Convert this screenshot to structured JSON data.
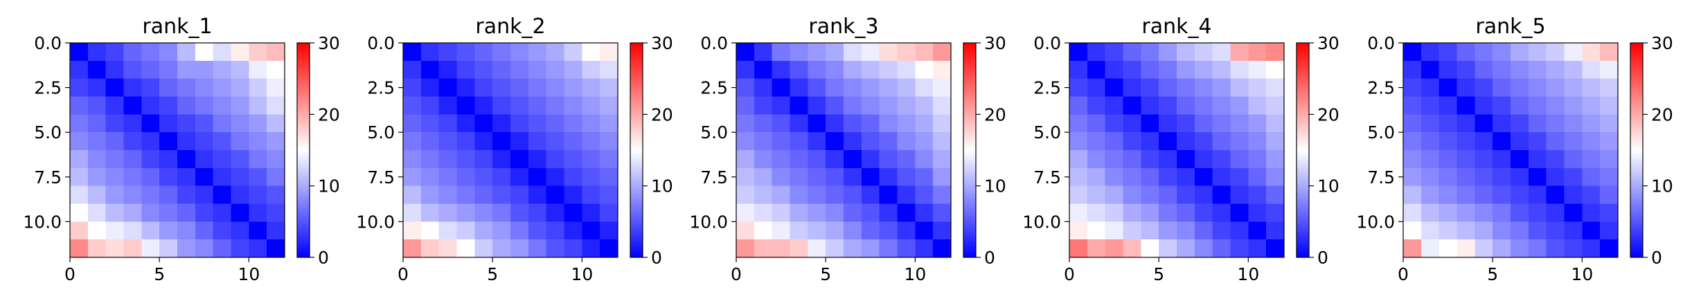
{
  "chart_data": [
    {
      "type": "heatmap",
      "title": "rank_1",
      "n": 12,
      "xticks": [
        0,
        5,
        10
      ],
      "xtick_labels": [
        "0",
        "5",
        "10"
      ],
      "yticks": [
        0,
        2.5,
        5,
        7.5,
        10
      ],
      "ytick_labels": [
        "0.0",
        "2.5",
        "5.0",
        "7.5",
        "10.0"
      ],
      "colorbar": {
        "vmin": 0,
        "vmax": 30,
        "ticks": [
          0,
          10,
          20,
          30
        ],
        "tick_labels": [
          "0",
          "10",
          "20",
          "30"
        ],
        "colors": [
          "#0000ff",
          "#ffffff",
          "#ff0000"
        ]
      },
      "values": [
        [
          0,
          3,
          4,
          6,
          7,
          8,
          11,
          15,
          13,
          16,
          18,
          19
        ],
        [
          3,
          0,
          3,
          5,
          6,
          7,
          9,
          9,
          10,
          11,
          14,
          15
        ],
        [
          4,
          3,
          0,
          3,
          4,
          6,
          7,
          8,
          9,
          10,
          12,
          14
        ],
        [
          6,
          5,
          3,
          0,
          3,
          4,
          6,
          7,
          8,
          9,
          11,
          13
        ],
        [
          7,
          6,
          4,
          3,
          0,
          3,
          4,
          5,
          7,
          8,
          9,
          11
        ],
        [
          8,
          7,
          6,
          4,
          3,
          0,
          3,
          4,
          5,
          7,
          8,
          9
        ],
        [
          10,
          8,
          7,
          6,
          4,
          3,
          0,
          3,
          4,
          5,
          7,
          8
        ],
        [
          11,
          9,
          8,
          7,
          6,
          4,
          3,
          0,
          3,
          4,
          5,
          7
        ],
        [
          13,
          11,
          9,
          8,
          7,
          6,
          4,
          3,
          0,
          3,
          4,
          5
        ],
        [
          15,
          13,
          11,
          10,
          8,
          7,
          6,
          4,
          3,
          0,
          3,
          4
        ],
        [
          18,
          15,
          14,
          13,
          11,
          9,
          8,
          6,
          4,
          3,
          0,
          3
        ],
        [
          22,
          18,
          17,
          18,
          14,
          12,
          9,
          8,
          6,
          4,
          3,
          0
        ]
      ]
    },
    {
      "type": "heatmap",
      "title": "rank_2",
      "n": 12,
      "xticks": [
        0,
        5,
        10
      ],
      "xtick_labels": [
        "0",
        "5",
        "10"
      ],
      "yticks": [
        0,
        2.5,
        5,
        7.5,
        10
      ],
      "ytick_labels": [
        "0.0",
        "2.5",
        "5.0",
        "7.5",
        "10.0"
      ],
      "colorbar": {
        "vmin": 0,
        "vmax": 30,
        "ticks": [
          0,
          10,
          20,
          30
        ],
        "tick_labels": [
          "0",
          "10",
          "20",
          "30"
        ],
        "colors": [
          "#0000ff",
          "#ffffff",
          "#ff0000"
        ]
      },
      "values": [
        [
          0,
          3,
          4,
          5,
          6,
          7,
          8,
          9,
          10,
          12,
          15,
          16
        ],
        [
          3,
          0,
          2,
          4,
          5,
          6,
          7,
          8,
          9,
          10,
          12,
          13
        ],
        [
          4,
          2,
          0,
          2,
          4,
          5,
          6,
          7,
          8,
          9,
          10,
          11
        ],
        [
          5,
          4,
          2,
          0,
          2,
          4,
          5,
          6,
          7,
          8,
          9,
          10
        ],
        [
          6,
          5,
          4,
          2,
          0,
          2,
          4,
          5,
          6,
          7,
          8,
          9
        ],
        [
          7,
          6,
          5,
          4,
          2,
          0,
          2,
          4,
          5,
          6,
          7,
          8
        ],
        [
          8,
          7,
          6,
          5,
          4,
          2,
          0,
          2,
          4,
          5,
          6,
          7
        ],
        [
          9,
          8,
          7,
          6,
          5,
          4,
          2,
          0,
          2,
          4,
          5,
          6
        ],
        [
          11,
          9,
          8,
          7,
          6,
          5,
          4,
          2,
          0,
          2,
          4,
          5
        ],
        [
          13,
          11,
          10,
          9,
          8,
          7,
          5,
          4,
          2,
          0,
          2,
          4
        ],
        [
          16,
          15,
          13,
          12,
          10,
          9,
          7,
          5,
          4,
          2,
          0,
          2
        ],
        [
          21,
          18,
          17,
          15,
          12,
          10,
          9,
          7,
          5,
          4,
          2,
          0
        ]
      ]
    },
    {
      "type": "heatmap",
      "title": "rank_3",
      "n": 12,
      "xticks": [
        0,
        5,
        10
      ],
      "xtick_labels": [
        "0",
        "5",
        "10"
      ],
      "yticks": [
        0,
        2.5,
        5,
        7.5,
        10
      ],
      "ytick_labels": [
        "0.0",
        "2.5",
        "5.0",
        "7.5",
        "10.0"
      ],
      "colorbar": {
        "vmin": 0,
        "vmax": 30,
        "ticks": [
          0,
          10,
          20,
          30
        ],
        "tick_labels": [
          "0",
          "10",
          "20",
          "30"
        ],
        "colors": [
          "#0000ff",
          "#ffffff",
          "#ff0000"
        ]
      },
      "values": [
        [
          0,
          3,
          7,
          8,
          9,
          10,
          13,
          14,
          17,
          18,
          19,
          21
        ],
        [
          3,
          0,
          3,
          5,
          7,
          8,
          10,
          11,
          12,
          13,
          15,
          16
        ],
        [
          5,
          3,
          0,
          3,
          5,
          7,
          8,
          9,
          10,
          11,
          13,
          14
        ],
        [
          6,
          4,
          3,
          0,
          3,
          5,
          7,
          8,
          9,
          10,
          11,
          13
        ],
        [
          7,
          6,
          5,
          3,
          0,
          3,
          5,
          6,
          8,
          9,
          10,
          12
        ],
        [
          8,
          7,
          6,
          5,
          3,
          0,
          3,
          5,
          6,
          8,
          9,
          11
        ],
        [
          10,
          8,
          7,
          6,
          5,
          3,
          0,
          3,
          5,
          6,
          8,
          10
        ],
        [
          11,
          10,
          8,
          7,
          6,
          5,
          3,
          0,
          3,
          5,
          6,
          9
        ],
        [
          12,
          11,
          10,
          8,
          7,
          6,
          5,
          3,
          0,
          3,
          5,
          7
        ],
        [
          14,
          13,
          12,
          10,
          9,
          8,
          6,
          5,
          3,
          0,
          3,
          5
        ],
        [
          17,
          15,
          14,
          12,
          11,
          10,
          8,
          6,
          5,
          3,
          0,
          3
        ],
        [
          21,
          19,
          19,
          18,
          14,
          12,
          10,
          9,
          7,
          5,
          3,
          0
        ]
      ]
    },
    {
      "type": "heatmap",
      "title": "rank_4",
      "n": 12,
      "xticks": [
        0,
        5,
        10
      ],
      "xtick_labels": [
        "0",
        "5",
        "10"
      ],
      "yticks": [
        0,
        2.5,
        5,
        7.5,
        10
      ],
      "ytick_labels": [
        "0.0",
        "2.5",
        "5.0",
        "7.5",
        "10.0"
      ],
      "colorbar": {
        "vmin": 0,
        "vmax": 30,
        "ticks": [
          0,
          10,
          20,
          30
        ],
        "tick_labels": [
          "0",
          "10",
          "20",
          "30"
        ],
        "colors": [
          "#0000ff",
          "#ffffff",
          "#ff0000"
        ]
      },
      "values": [
        [
          0,
          3,
          4,
          6,
          7,
          9,
          11,
          12,
          13,
          20,
          21,
          22
        ],
        [
          3,
          0,
          3,
          4,
          6,
          7,
          9,
          10,
          11,
          13,
          14,
          15
        ],
        [
          4,
          3,
          0,
          3,
          4,
          6,
          7,
          8,
          9,
          11,
          12,
          13
        ],
        [
          6,
          4,
          3,
          0,
          3,
          4,
          6,
          7,
          8,
          9,
          11,
          12
        ],
        [
          7,
          6,
          4,
          3,
          0,
          3,
          4,
          6,
          7,
          8,
          9,
          11
        ],
        [
          8,
          7,
          6,
          4,
          3,
          0,
          3,
          4,
          6,
          7,
          8,
          10
        ],
        [
          10,
          8,
          7,
          6,
          4,
          3,
          0,
          3,
          4,
          6,
          7,
          9
        ],
        [
          11,
          10,
          8,
          7,
          6,
          4,
          3,
          0,
          3,
          4,
          6,
          8
        ],
        [
          12,
          11,
          10,
          8,
          7,
          6,
          4,
          3,
          0,
          3,
          4,
          6
        ],
        [
          14,
          13,
          12,
          10,
          9,
          7,
          6,
          4,
          3,
          0,
          3,
          4
        ],
        [
          16,
          15,
          14,
          12,
          11,
          9,
          8,
          6,
          4,
          3,
          0,
          3
        ],
        [
          23,
          20,
          21,
          19,
          15,
          12,
          10,
          8,
          6,
          4,
          3,
          0
        ]
      ]
    },
    {
      "type": "heatmap",
      "title": "rank_5",
      "n": 12,
      "xticks": [
        0,
        5,
        10
      ],
      "xtick_labels": [
        "0",
        "5",
        "10"
      ],
      "yticks": [
        0,
        2.5,
        5,
        7.5,
        10
      ],
      "ytick_labels": [
        "0.0",
        "2.5",
        "5.0",
        "7.5",
        "10.0"
      ],
      "colorbar": {
        "vmin": 0,
        "vmax": 30,
        "ticks": [
          0,
          10,
          20,
          30
        ],
        "tick_labels": [
          "0",
          "10",
          "20",
          "30"
        ],
        "colors": [
          "#0000ff",
          "#ffffff",
          "#ff0000"
        ]
      },
      "values": [
        [
          0,
          3,
          4,
          6,
          7,
          8,
          10,
          11,
          12,
          14,
          17,
          19
        ],
        [
          3,
          0,
          3,
          4,
          6,
          7,
          8,
          9,
          10,
          11,
          13,
          14
        ],
        [
          4,
          3,
          0,
          3,
          4,
          6,
          7,
          8,
          9,
          10,
          11,
          12
        ],
        [
          5,
          4,
          3,
          0,
          3,
          4,
          6,
          7,
          8,
          9,
          10,
          11
        ],
        [
          6,
          5,
          4,
          3,
          0,
          3,
          4,
          6,
          7,
          8,
          9,
          10
        ],
        [
          7,
          6,
          5,
          4,
          3,
          0,
          3,
          4,
          6,
          7,
          8,
          9
        ],
        [
          8,
          7,
          6,
          5,
          4,
          3,
          0,
          3,
          4,
          6,
          7,
          8
        ],
        [
          9,
          8,
          7,
          6,
          5,
          4,
          3,
          0,
          3,
          4,
          6,
          7
        ],
        [
          11,
          9,
          8,
          7,
          6,
          5,
          4,
          3,
          0,
          3,
          4,
          6
        ],
        [
          13,
          11,
          10,
          9,
          8,
          7,
          5,
          4,
          3,
          0,
          3,
          4
        ],
        [
          15,
          13,
          12,
          11,
          10,
          8,
          7,
          5,
          4,
          3,
          0,
          3
        ],
        [
          21,
          14,
          15,
          16,
          12,
          10,
          8,
          7,
          5,
          4,
          3,
          0
        ]
      ]
    }
  ]
}
